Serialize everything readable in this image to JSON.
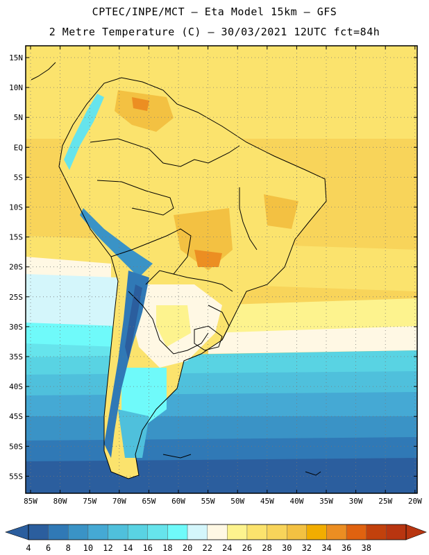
{
  "header": {
    "line1": "CPTEC/INPE/MCT –  Eta Model 15km – GFS",
    "line2": "2 Metre Temperature (C) – 30/03/2021 12UTC fct=84h"
  },
  "map": {
    "lat_labels": [
      "15N",
      "10N",
      "5N",
      "EQ",
      "5S",
      "10S",
      "15S",
      "20S",
      "25S",
      "30S",
      "35S",
      "40S",
      "45S",
      "50S",
      "55S"
    ],
    "lon_labels": [
      "85W",
      "80W",
      "75W",
      "70W",
      "65W",
      "60W",
      "55W",
      "50W",
      "45W",
      "40W",
      "35W",
      "30W",
      "25W",
      "20W"
    ]
  },
  "colorbar": {
    "labels": [
      "4",
      "6",
      "8",
      "10",
      "12",
      "14",
      "16",
      "18",
      "20",
      "22",
      "24",
      "26",
      "28",
      "30",
      "32",
      "34",
      "36",
      "38"
    ],
    "colors": [
      "#2b5e9e",
      "#3079b6",
      "#3a93c6",
      "#45a9d4",
      "#4fc0dc",
      "#59d3e3",
      "#66e4ec",
      "#6ffafa",
      "#d4f6fb",
      "#fff8e4",
      "#fdf38e",
      "#fbe36d",
      "#f8d45a",
      "#f3c142",
      "#f2ad00",
      "#ec8e22",
      "#e0620f",
      "#c2410c",
      "#b83510"
    ],
    "low_arrow_color": "#2b5e9e",
    "high_arrow_color": "#b83510"
  }
}
